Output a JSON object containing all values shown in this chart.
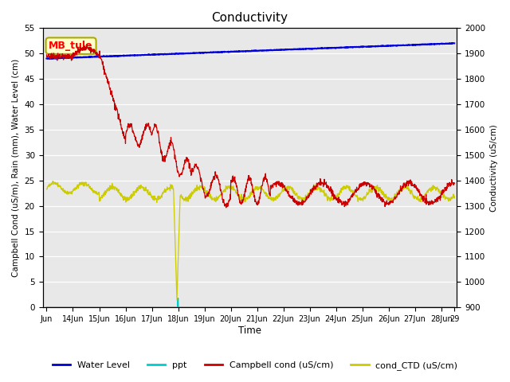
{
  "title": "Conductivity",
  "xlabel": "Time",
  "ylabel_left": "Campbell Cond (uS/m), Rain (mm), Water Level (cm)",
  "ylabel_right": "Conductivity (uS/cm)",
  "ylim_left": [
    0,
    55
  ],
  "ylim_right": [
    900,
    2000
  ],
  "yticks_left": [
    0,
    5,
    10,
    15,
    20,
    25,
    30,
    35,
    40,
    45,
    50,
    55
  ],
  "yticks_right": [
    900,
    1000,
    1100,
    1200,
    1300,
    1400,
    1500,
    1600,
    1700,
    1800,
    1900,
    2000
  ],
  "xlim_days": [
    -0.15,
    15.6
  ],
  "xtick_labels": [
    "Jun",
    "14Jun",
    "15Jun",
    "16Jun",
    "17Jun",
    "18Jun",
    "19Jun",
    "20Jun",
    "21Jun",
    "22Jun",
    "23Jun",
    "24Jun",
    "25Jun",
    "26Jun",
    "27Jun",
    "28Jun",
    "29"
  ],
  "xtick_positions": [
    0,
    1,
    2,
    3,
    4,
    5,
    6,
    7,
    8,
    9,
    10,
    11,
    12,
    13,
    14,
    15,
    15.5
  ],
  "bg_color": "#e8e8e8",
  "annotation_text": "MB_tule",
  "annotation_bg": "#ffffcc",
  "annotation_edge": "#aaaa00",
  "legend_entries": [
    "Water Level",
    "ppt",
    "Campbell cond (uS/cm)",
    "cond_CTD (uS/cm)"
  ],
  "legend_colors": [
    "#0000cc",
    "#00cccc",
    "#cc0000",
    "#cccc00"
  ],
  "water_level_color": "#0000dd",
  "ppt_color": "#00cccc",
  "campbell_color": "#cc0000",
  "ctd_color": "#cccc00"
}
